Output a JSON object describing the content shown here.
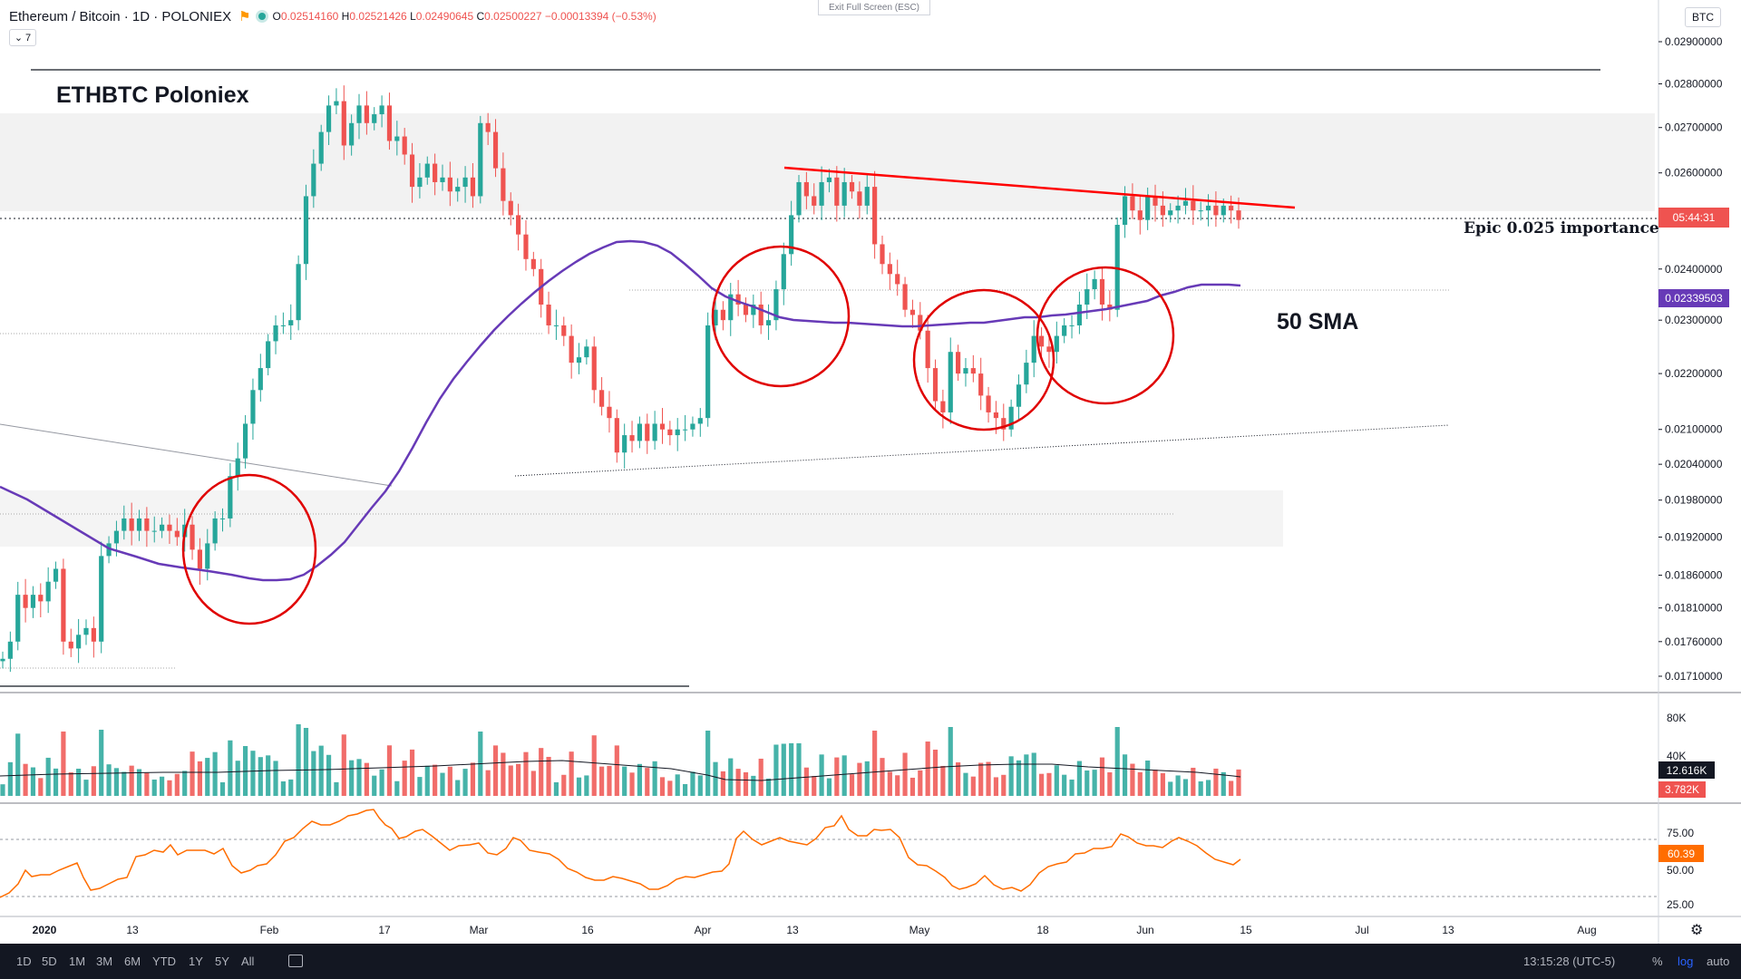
{
  "header": {
    "symbol_title": "Ethereum / Bitcoin · 1D · POLONIEX",
    "open": "0.02514160",
    "high": "0.02521426",
    "low": "0.02490645",
    "close": "0.02500227",
    "change": "−0.00013394 (−0.53%)",
    "indicator_toggle": "7"
  },
  "exit_fullscreen_label": "Exit Full Screen (ESC)",
  "currency_label": "BTC",
  "annotations": {
    "title": "ETHBTC Poloniex",
    "epic_label": "Epic 0.025 importance",
    "sma_label": "50 SMA"
  },
  "price_badges": {
    "countdown": "05:44:31",
    "sma_value": "0.02339503",
    "volume_ma": "12.616K",
    "volume_last": "3.782K",
    "rsi_value": "60.39"
  },
  "colors": {
    "up": "#26a69a",
    "down": "#ef5350",
    "sma": "#673ab7",
    "rsi": "#ff6d00",
    "trendline_red": "#ff0000",
    "circle_red": "#e00000",
    "price_badge": "#ef5350"
  },
  "bottom_bar": {
    "ranges": [
      "1D",
      "5D",
      "1M",
      "3M",
      "6M",
      "YTD",
      "1Y",
      "5Y",
      "All"
    ],
    "clock": "13:15:28 (UTC-5)",
    "percent": "%",
    "log": "log",
    "auto": "auto"
  },
  "chart_data": [
    {
      "type": "candlestick",
      "title": "Ethereum / Bitcoin · 1D · POLONIEX",
      "y_axis_ticks": [
        "0.02900000",
        "0.02800000",
        "0.02700000",
        "0.02600000",
        "0.02500000",
        "0.02400000",
        "0.02300000",
        "0.02200000",
        "0.02100000",
        "0.02040000",
        "0.01980000",
        "0.01920000",
        "0.01860000",
        "0.01810000",
        "0.01760000",
        "0.01710000"
      ],
      "y_axis_scale": "log",
      "x_axis_ticks": [
        "2020",
        "13",
        "Feb",
        "17",
        "Mar",
        "16",
        "Apr",
        "13",
        "May",
        "18",
        "Jun",
        "15",
        "Jul",
        "13",
        "Aug"
      ],
      "close_series": [
        0.01735,
        0.0176,
        0.0183,
        0.0181,
        0.0183,
        0.0182,
        0.0185,
        0.0187,
        0.0176,
        0.0175,
        0.0177,
        0.0178,
        0.0176,
        0.0189,
        0.0191,
        0.0193,
        0.0195,
        0.0193,
        0.0195,
        0.0193,
        0.0193,
        0.0194,
        0.0193,
        0.0192,
        0.0194,
        0.019,
        0.0187,
        0.0191,
        0.0195,
        0.0195,
        0.0202,
        0.0205,
        0.0211,
        0.0217,
        0.0221,
        0.0226,
        0.0229,
        0.0229,
        0.023,
        0.0241,
        0.0255,
        0.0262,
        0.0269,
        0.0275,
        0.0276,
        0.0266,
        0.0271,
        0.0275,
        0.0271,
        0.0273,
        0.0275,
        0.0267,
        0.0268,
        0.0264,
        0.0257,
        0.0259,
        0.0262,
        0.0258,
        0.0259,
        0.0256,
        0.0257,
        0.0259,
        0.0255,
        0.0271,
        0.0269,
        0.0261,
        0.0254,
        0.0251,
        0.0247,
        0.0242,
        0.024,
        0.0233,
        0.0229,
        0.0229,
        0.0227,
        0.0222,
        0.0223,
        0.0225,
        0.0217,
        0.0214,
        0.0212,
        0.0206,
        0.0209,
        0.0208,
        0.0211,
        0.0208,
        0.0211,
        0.021,
        0.0209,
        0.021,
        0.021,
        0.0211,
        0.0212,
        0.0229,
        0.0232,
        0.023,
        0.0235,
        0.0233,
        0.0231,
        0.0233,
        0.0229,
        0.023,
        0.0236,
        0.0243,
        0.0251,
        0.0258,
        0.0255,
        0.0253,
        0.0258,
        0.0259,
        0.0253,
        0.0258,
        0.0256,
        0.0253,
        0.0257,
        0.0245,
        0.0241,
        0.0239,
        0.0237,
        0.0232,
        0.0231,
        0.0228,
        0.0221,
        0.0215,
        0.0213,
        0.0224,
        0.022,
        0.0221,
        0.022,
        0.0216,
        0.0213,
        0.0212,
        0.021,
        0.0214,
        0.0218,
        0.0222,
        0.0227,
        0.0225,
        0.0224,
        0.0227,
        0.0229,
        0.0229,
        0.0233,
        0.0236,
        0.0238,
        0.0233,
        0.0232,
        0.0249,
        0.0255,
        0.0252,
        0.025,
        0.0255,
        0.0253,
        0.0251,
        0.0252,
        0.0253,
        0.0254,
        0.0252,
        0.0252,
        0.0253,
        0.0251,
        0.0253,
        0.0252,
        0.025
      ],
      "sma_50": {
        "name": "50 SMA",
        "last_value": 0.02339503
      },
      "horizontal_lines": [
        0.02832,
        0.01683
      ],
      "volume_axis_ticks": [
        "80K",
        "40K"
      ],
      "rsi_axis_ticks": [
        "75.00",
        "50.00",
        "25.00"
      ],
      "rsi_last": 60.39,
      "grid": false,
      "legend": "top-left"
    }
  ]
}
